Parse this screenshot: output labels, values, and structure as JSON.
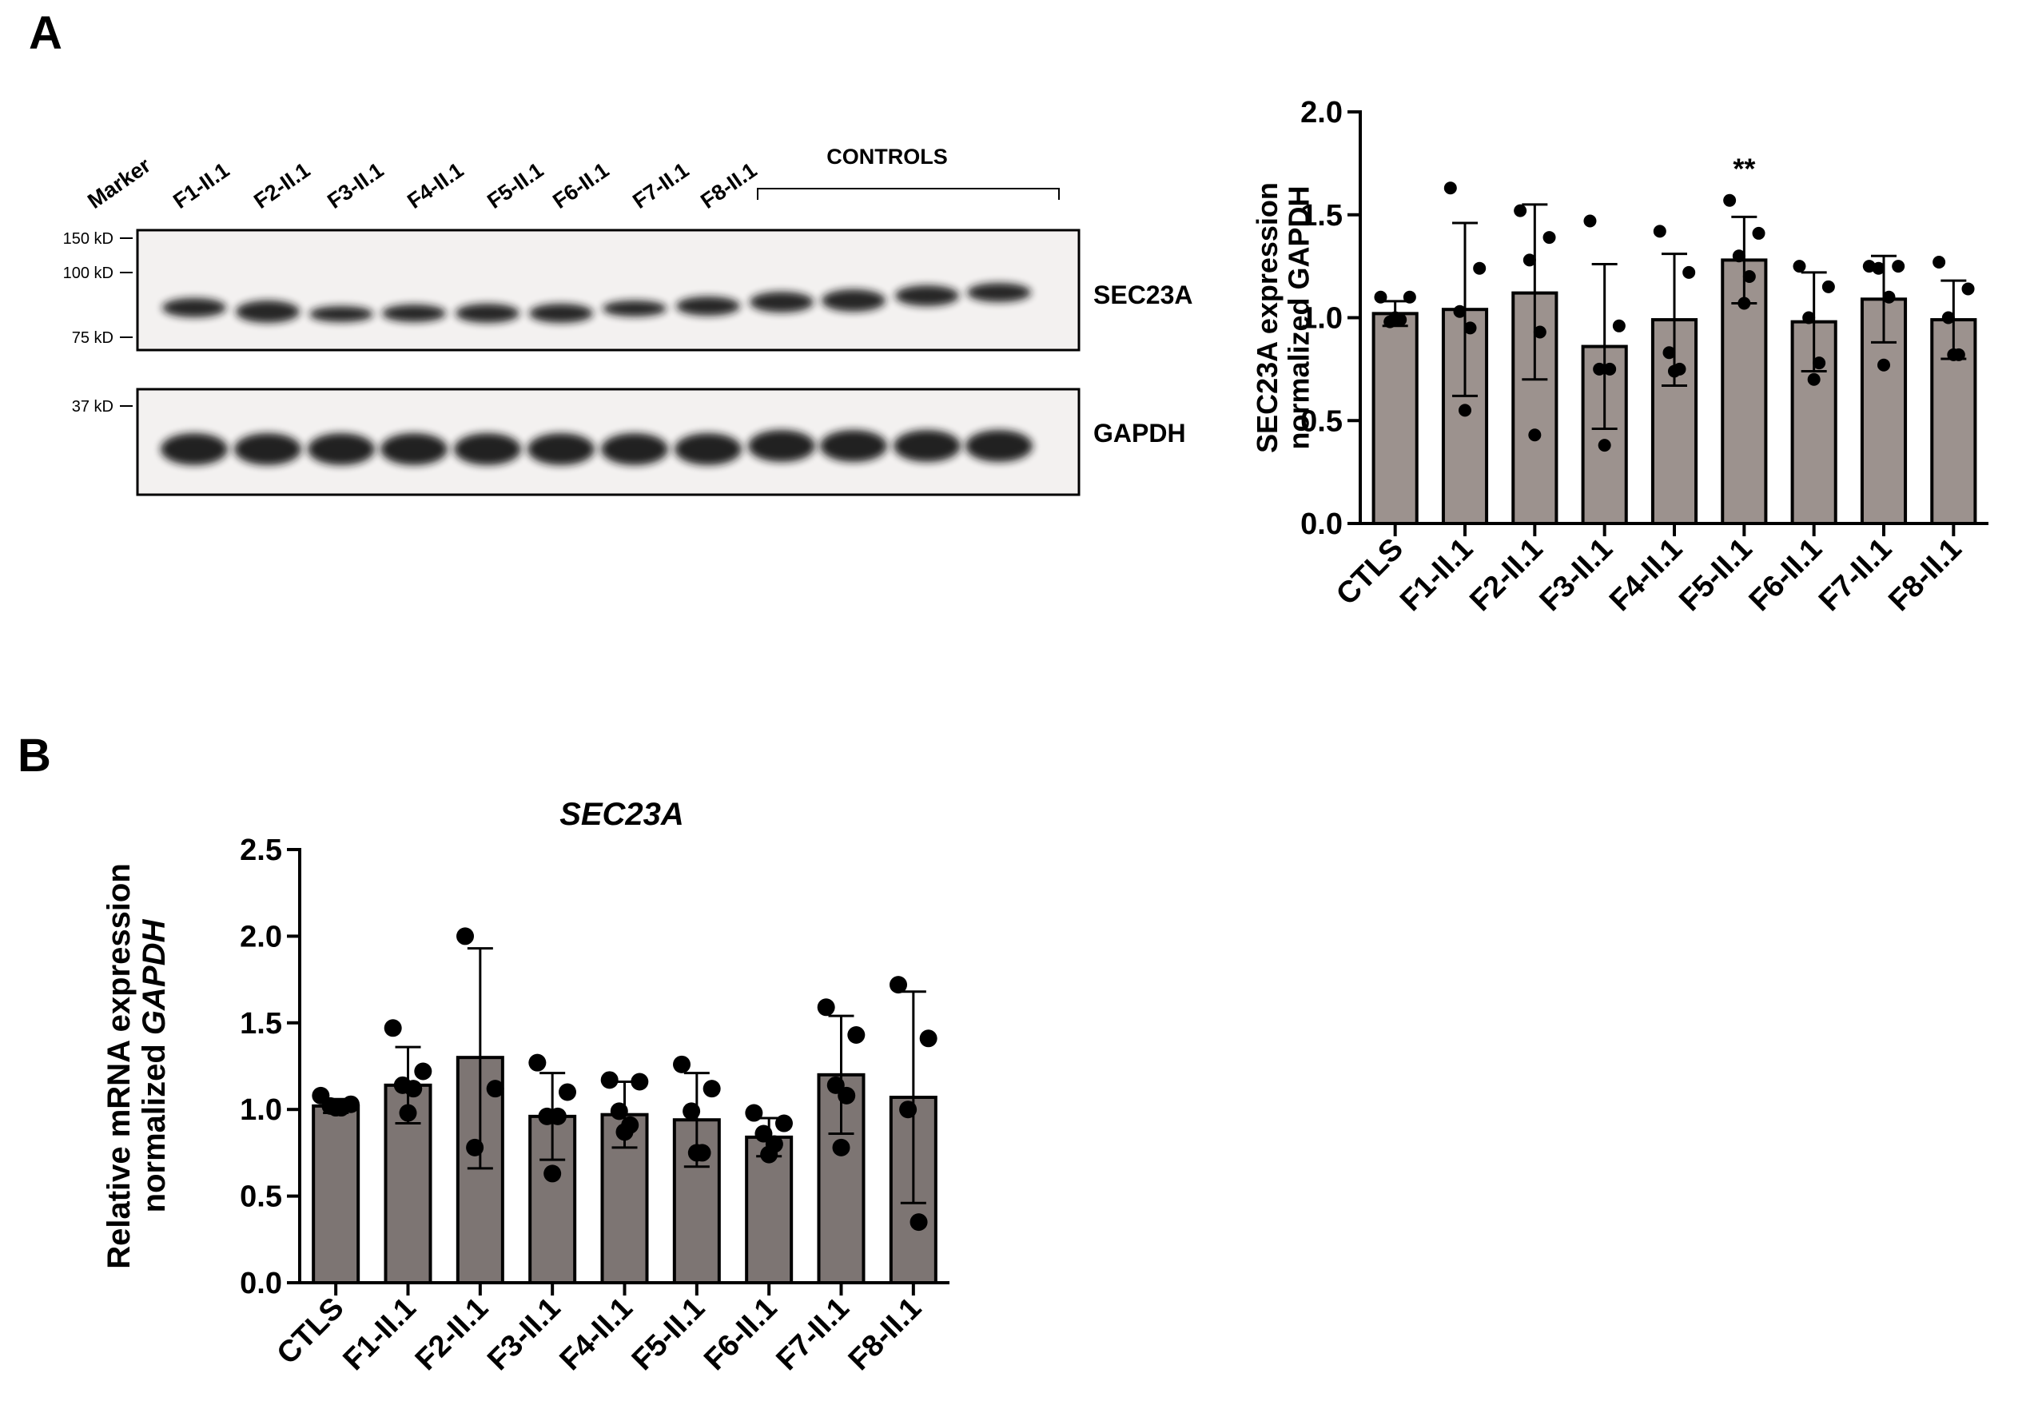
{
  "panels": {
    "a": "A",
    "b": "B"
  },
  "blot": {
    "lane_labels": [
      "Marker",
      "F1-II.1",
      "F2-II.1",
      "F3-II.1",
      "F4-II.1",
      "F5-II.1",
      "F6-II.1",
      "F7-II.1",
      "F8-II.1"
    ],
    "controls_label": "CONTROLS",
    "top_markers": [
      "150 kD",
      "100 kD",
      "75 kD"
    ],
    "bottom_markers": [
      "37 kD"
    ],
    "top_protein": "SEC23A",
    "bottom_protein": "GAPDH",
    "colors": {
      "band": "#141414",
      "background": "#f3f1f0"
    }
  },
  "chart_data": [
    {
      "type": "bar",
      "title": "",
      "ylabel": "SEC23A expression normalized GAPDH",
      "xlabel": "",
      "ylim": [
        0,
        2.0
      ],
      "yticks": [
        "0.0",
        "0.5",
        "1.0",
        "1.5",
        "2.0"
      ],
      "categories": [
        "CTLS",
        "F1-II.1",
        "F2-II.1",
        "F3-II.1",
        "F4-II.1",
        "F5-II.1",
        "F6-II.1",
        "F7-II.1",
        "F8-II.1"
      ],
      "values": [
        1.02,
        1.04,
        1.12,
        0.86,
        0.99,
        1.28,
        0.98,
        1.09,
        0.99
      ],
      "error_low": [
        0.96,
        0.62,
        0.7,
        0.46,
        0.67,
        1.07,
        0.74,
        0.88,
        0.8
      ],
      "error_high": [
        1.08,
        1.46,
        1.55,
        1.26,
        1.31,
        1.49,
        1.22,
        1.3,
        1.18
      ],
      "points": [
        [
          1.1,
          1.1,
          0.98,
          0.99,
          1.0
        ],
        [
          1.63,
          1.24,
          1.03,
          0.95,
          0.55
        ],
        [
          1.52,
          1.39,
          1.28,
          0.93,
          0.43
        ],
        [
          1.47,
          0.96,
          0.75,
          0.75,
          0.38
        ],
        [
          1.42,
          1.22,
          0.83,
          0.75,
          0.74
        ],
        [
          1.57,
          1.41,
          1.3,
          1.2,
          1.07
        ],
        [
          1.25,
          1.15,
          1.0,
          0.78,
          0.7
        ],
        [
          1.25,
          1.25,
          1.24,
          1.1,
          0.77
        ],
        [
          1.27,
          1.14,
          1.0,
          0.82,
          0.82
        ]
      ],
      "annotations": [
        {
          "category": "F5-II.1",
          "text": "**"
        }
      ],
      "colors": {
        "bar": "#9c928e",
        "edge": "#000000",
        "point": "#000000"
      }
    },
    {
      "type": "bar",
      "title": "SEC23A",
      "ylabel": "Relative mRNA expression normalized GAPDH",
      "xlabel": "",
      "ylim": [
        0,
        2.5
      ],
      "yticks": [
        "0.0",
        "0.5",
        "1.0",
        "1.5",
        "2.0",
        "2.5"
      ],
      "categories": [
        "CTLS",
        "F1-II.1",
        "F2-II.1",
        "F3-II.1",
        "F4-II.1",
        "F5-II.1",
        "F6-II.1",
        "F7-II.1",
        "F8-II.1"
      ],
      "values": [
        1.02,
        1.14,
        1.3,
        0.96,
        0.97,
        0.94,
        0.84,
        1.2,
        1.07
      ],
      "error_low": [
        0.98,
        0.92,
        0.66,
        0.71,
        0.78,
        0.67,
        0.73,
        0.86,
        0.46
      ],
      "error_high": [
        1.06,
        1.36,
        1.93,
        1.21,
        1.16,
        1.21,
        0.95,
        1.54,
        1.68
      ],
      "points": [
        [
          1.08,
          1.03,
          1.02,
          1.01,
          1.01
        ],
        [
          1.47,
          1.22,
          1.14,
          1.12,
          0.98
        ],
        [
          2.0,
          1.12,
          0.78
        ],
        [
          1.27,
          1.1,
          0.96,
          0.96,
          0.63
        ],
        [
          1.17,
          1.16,
          0.99,
          0.91,
          0.87
        ],
        [
          1.26,
          1.12,
          0.99,
          0.75,
          0.75
        ],
        [
          0.98,
          0.92,
          0.86,
          0.8,
          0.74
        ],
        [
          1.59,
          1.43,
          1.14,
          1.08,
          0.78
        ],
        [
          1.72,
          1.41,
          1.0,
          0.35
        ]
      ],
      "colors": {
        "bar": "#7d7573",
        "edge": "#000000",
        "point": "#000000"
      }
    }
  ]
}
